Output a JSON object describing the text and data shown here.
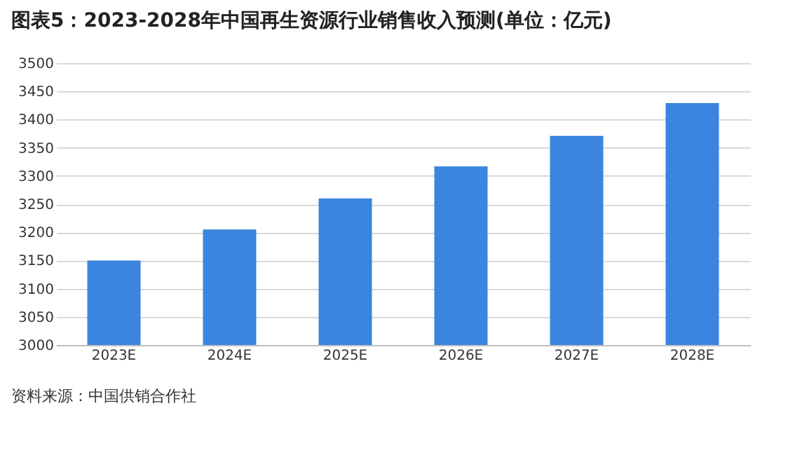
{
  "chart_data": {
    "type": "bar",
    "title": "图表5：2023-2028年中国再生资源行业销售收入预测(单位：亿元)",
    "categories": [
      "2023E",
      "2024E",
      "2025E",
      "2026E",
      "2027E",
      "2028E"
    ],
    "values": [
      3150,
      3205,
      3260,
      3317,
      3371,
      3429
    ],
    "color": "#3b84e0",
    "ylim": [
      3000,
      3500
    ],
    "yticks": [
      3000,
      3050,
      3100,
      3150,
      3200,
      3250,
      3300,
      3350,
      3400,
      3450,
      3500
    ],
    "grid": "y",
    "annotations": [
      "资料来源：中国供销合作社"
    ]
  }
}
